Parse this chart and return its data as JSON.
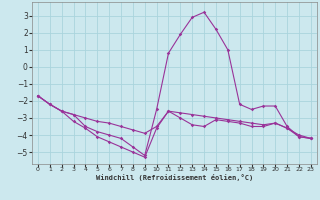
{
  "xlabel": "Windchill (Refroidissement éolien,°C)",
  "background_color": "#cce8ee",
  "grid_color": "#aad4dd",
  "line_color": "#993399",
  "xlim": [
    -0.5,
    23.5
  ],
  "ylim": [
    -5.7,
    3.8
  ],
  "yticks": [
    -5,
    -4,
    -3,
    -2,
    -1,
    0,
    1,
    2,
    3
  ],
  "xticks": [
    0,
    1,
    2,
    3,
    4,
    5,
    6,
    7,
    8,
    9,
    10,
    11,
    12,
    13,
    14,
    15,
    16,
    17,
    18,
    19,
    20,
    21,
    22,
    23
  ],
  "x": [
    0,
    1,
    2,
    3,
    4,
    5,
    6,
    7,
    8,
    9,
    10,
    11,
    12,
    13,
    14,
    15,
    16,
    17,
    18,
    19,
    20,
    21,
    22,
    23
  ],
  "y_peak": [
    -1.7,
    -2.2,
    -2.6,
    -2.8,
    -3.5,
    -3.8,
    -4.0,
    -4.2,
    -4.7,
    -5.2,
    -2.5,
    0.8,
    1.9,
    2.9,
    3.2,
    2.2,
    1.0,
    -2.2,
    -2.5,
    -2.3,
    -2.3,
    -3.5,
    -4.1,
    -4.2
  ],
  "y_mid": [
    -1.7,
    -2.2,
    -2.6,
    -2.8,
    -3.0,
    -3.2,
    -3.3,
    -3.5,
    -3.7,
    -3.9,
    -3.5,
    -2.6,
    -2.7,
    -2.8,
    -2.9,
    -3.0,
    -3.1,
    -3.2,
    -3.3,
    -3.4,
    -3.3,
    -3.6,
    -4.0,
    -4.2
  ],
  "y_low": [
    -1.7,
    -2.2,
    -2.6,
    -3.2,
    -3.6,
    -4.1,
    -4.4,
    -4.7,
    -5.0,
    -5.3,
    -3.6,
    -2.6,
    -3.0,
    -3.4,
    -3.5,
    -3.1,
    -3.2,
    -3.3,
    -3.5,
    -3.5,
    -3.3,
    -3.6,
    -4.1,
    -4.2
  ]
}
